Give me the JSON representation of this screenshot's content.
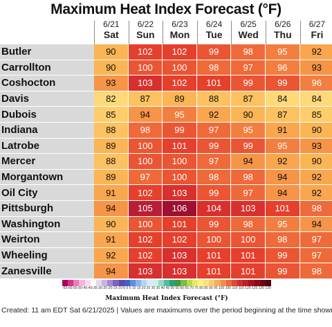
{
  "chart_data": {
    "type": "heatmap",
    "title": "Maximum Heat Index Forecast (°F)",
    "columns": [
      {
        "date": "6/21",
        "day": "Sat"
      },
      {
        "date": "6/22",
        "day": "Sun"
      },
      {
        "date": "6/23",
        "day": "Mon"
      },
      {
        "date": "6/24",
        "day": "Tue"
      },
      {
        "date": "6/25",
        "day": "Wed"
      },
      {
        "date": "6/26",
        "day": "Thu"
      },
      {
        "date": "6/27",
        "day": "Fri"
      }
    ],
    "rows": [
      {
        "station": "Butler",
        "values": [
          90,
          102,
          102,
          99,
          98,
          95,
          92
        ]
      },
      {
        "station": "Carrollton",
        "values": [
          90,
          100,
          100,
          98,
          97,
          96,
          93
        ]
      },
      {
        "station": "Coshocton",
        "values": [
          93,
          103,
          102,
          101,
          99,
          99,
          96
        ]
      },
      {
        "station": "Davis",
        "values": [
          82,
          87,
          89,
          88,
          87,
          84,
          84
        ]
      },
      {
        "station": "Dubois",
        "values": [
          85,
          94,
          95,
          92,
          90,
          87,
          85
        ]
      },
      {
        "station": "Indiana",
        "values": [
          88,
          98,
          99,
          97,
          95,
          91,
          90
        ]
      },
      {
        "station": "Latrobe",
        "values": [
          89,
          100,
          101,
          99,
          99,
          95,
          93
        ]
      },
      {
        "station": "Mercer",
        "values": [
          88,
          100,
          100,
          97,
          94,
          92,
          90
        ]
      },
      {
        "station": "Morgantown",
        "values": [
          89,
          97,
          100,
          98,
          98,
          94,
          92
        ]
      },
      {
        "station": "Oil City",
        "values": [
          91,
          102,
          103,
          99,
          97,
          94,
          92
        ]
      },
      {
        "station": "Pittsburgh",
        "values": [
          94,
          105,
          106,
          104,
          103,
          101,
          98
        ]
      },
      {
        "station": "Washington",
        "values": [
          90,
          100,
          101,
          99,
          98,
          95,
          94
        ]
      },
      {
        "station": "Weirton",
        "values": [
          91,
          102,
          102,
          100,
          100,
          98,
          97
        ]
      },
      {
        "station": "Wheeling",
        "values": [
          92,
          102,
          103,
          101,
          101,
          99,
          97
        ]
      },
      {
        "station": "Zanesville",
        "values": [
          94,
          103,
          103,
          101,
          101,
          99,
          98
        ]
      }
    ],
    "legend_title": "Maximum Heat Index Forecast (°F)",
    "legend_ticks": "-65-60-55-50-45-40-35-30-25-20-15-10-5 0 5 10 15 20 25 30 35 40 45 50 55 60 65 70 75 80 85 90 95 100 105 110 115 120 125 130 135 140",
    "legend_colors": [
      "#b0005f",
      "#d7348f",
      "#ee7bbe",
      "#f7b4dc",
      "#fbd8ee",
      "#ffffff",
      "#e4d8f0",
      "#c9b3e2",
      "#a58ad2",
      "#7d62bf",
      "#5a4aae",
      "#3f62c8",
      "#5b8fe0",
      "#86b6f0",
      "#b2d6f8",
      "#d6ecfc",
      "#c9f0e6",
      "#8fdcc5",
      "#4fc09e",
      "#26a276",
      "#3f9a3a",
      "#7cbd43",
      "#b7d94e",
      "#e6ec5e",
      "#fff27a",
      "#ffe07a",
      "#fcc86a",
      "#f8ac58",
      "#f28d4a",
      "#ea6a3c",
      "#e04a30",
      "#d22c28",
      "#c01e24",
      "#a7121e",
      "#8c0a18",
      "#6e0512",
      "#520210"
    ],
    "footer": "Created: 11 am EDT Sat 6/21/2025  |  Values are maximums over the period beginning at the time shown."
  }
}
